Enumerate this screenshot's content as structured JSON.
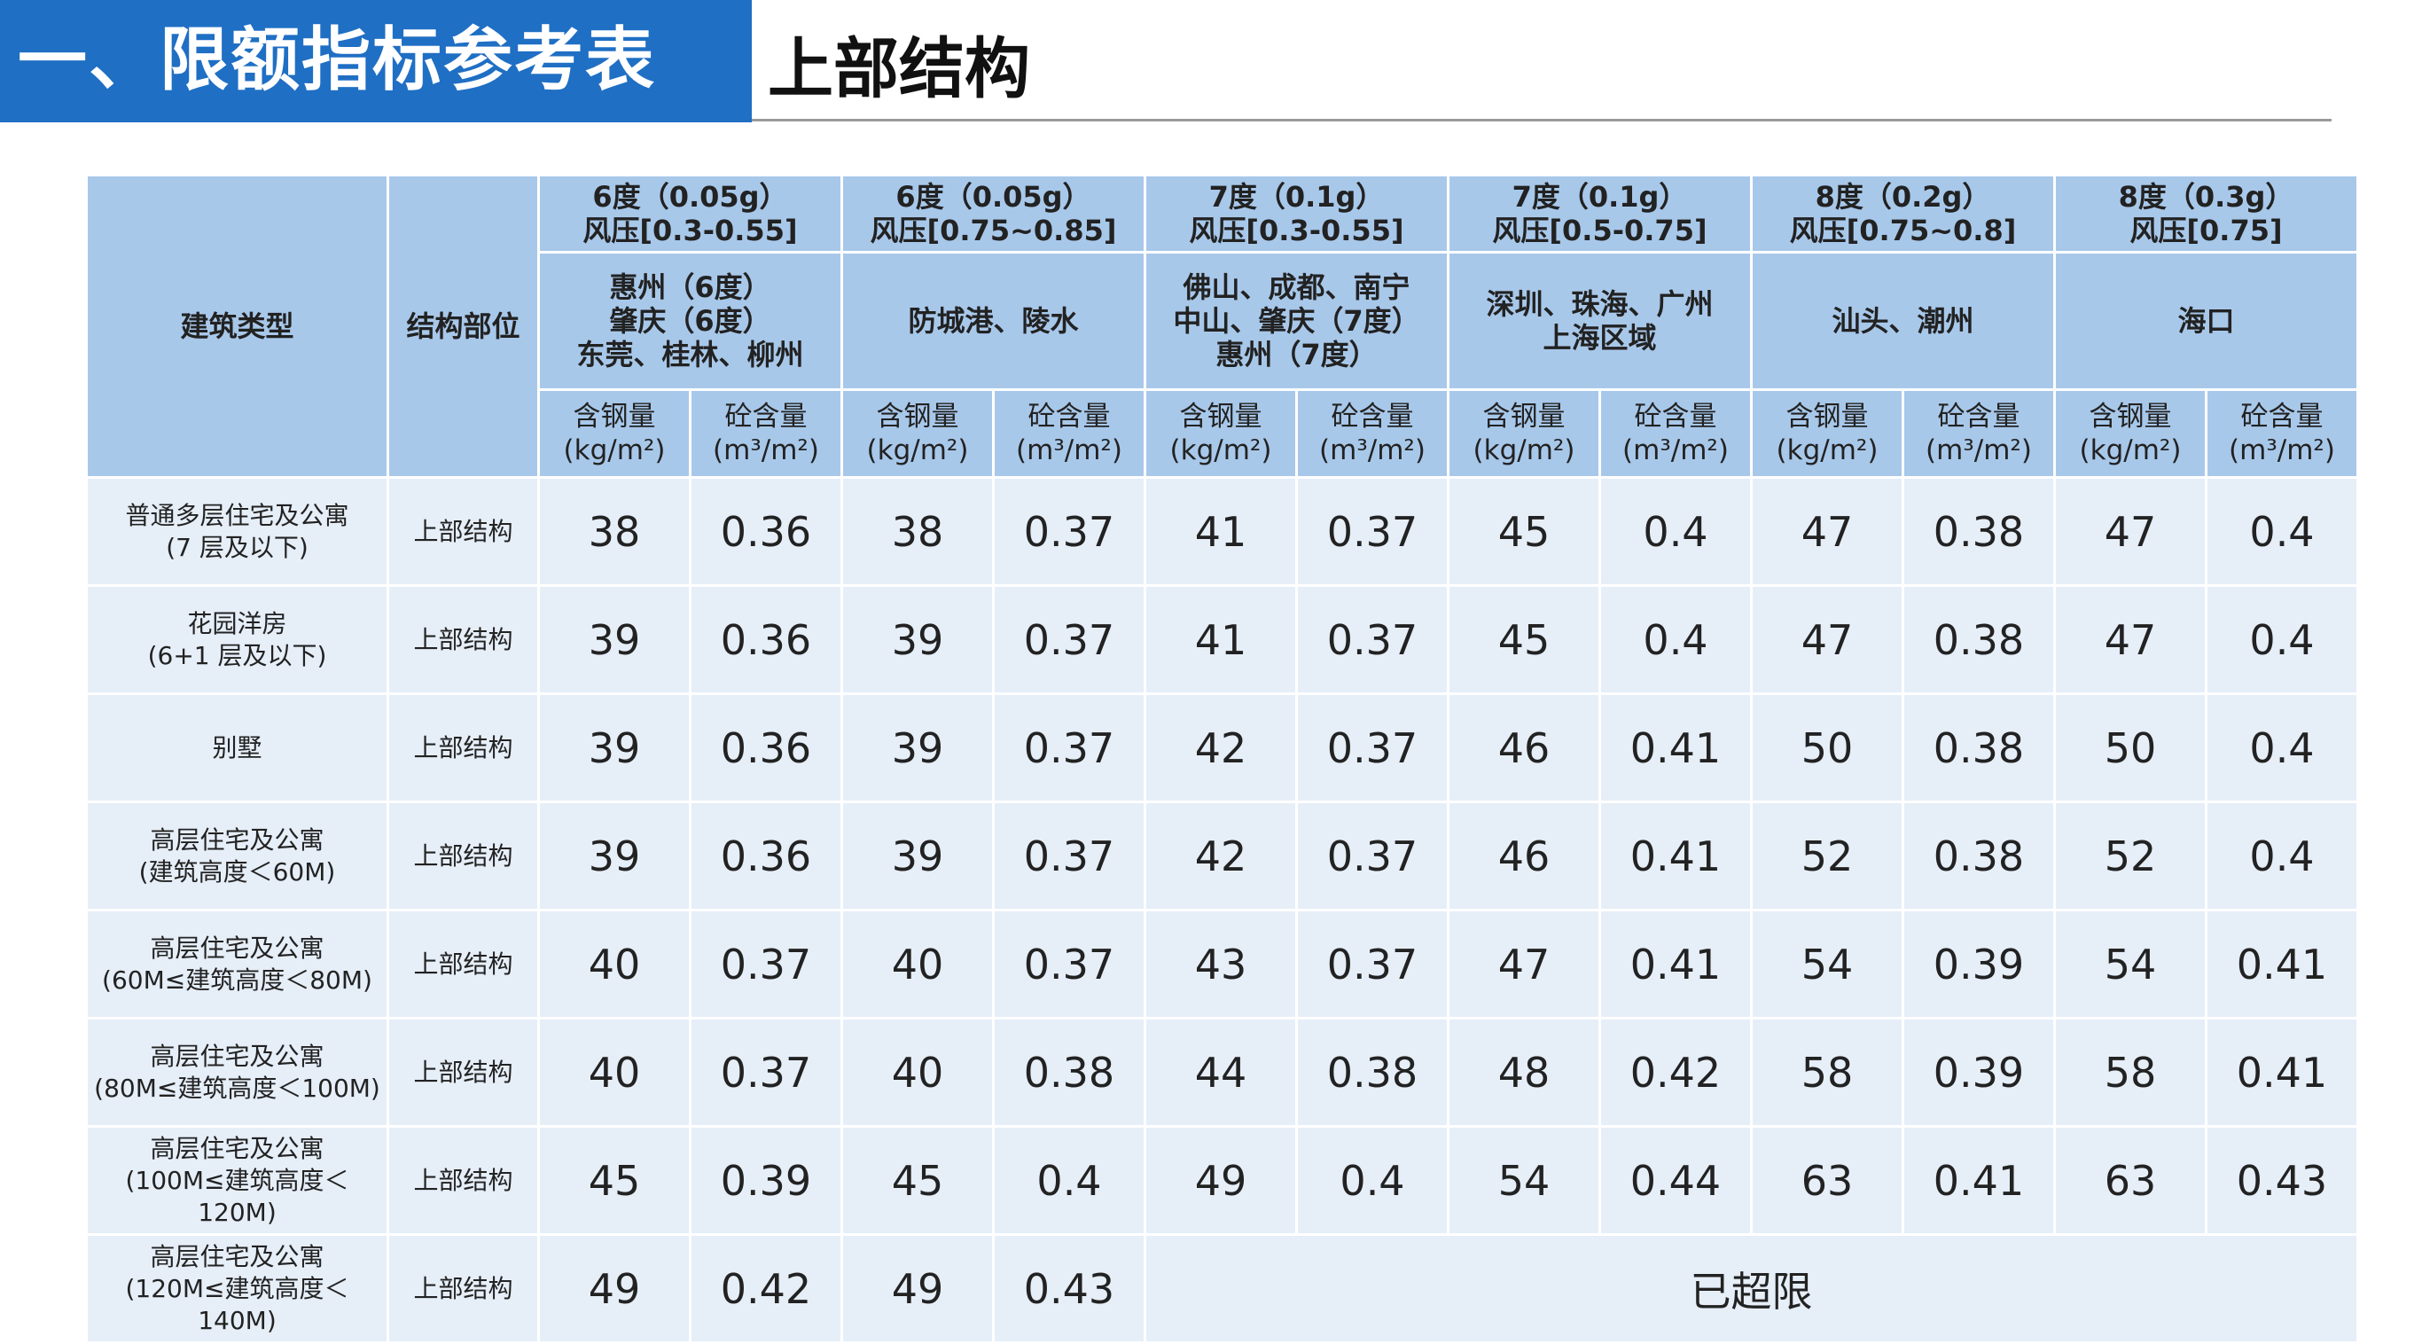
{
  "header": {
    "title": "一、限额指标参考表",
    "subtitle": "上部结构"
  },
  "table": {
    "col_building_type": "建筑类型",
    "col_structure_part": "结构部位",
    "regions": [
      {
        "intensity": "6度（0.05g）",
        "wind": "风压[0.3-0.55]",
        "cities": "惠州（6度）\n肇庆（6度）\n东莞、桂林、柳州"
      },
      {
        "intensity": "6度（0.05g）",
        "wind": "风压[0.75~0.85]",
        "cities": "防城港、陵水"
      },
      {
        "intensity": "7度（0.1g）",
        "wind": "风压[0.3-0.55]",
        "cities": "佛山、成都、南宁\n中山、肇庆（7度）\n惠州（7度）"
      },
      {
        "intensity": "7度（0.1g）",
        "wind": "风压[0.5-0.75]",
        "cities": "深圳、珠海、广州\n上海区域"
      },
      {
        "intensity": "8度（0.2g）",
        "wind": "风压[0.75~0.8]",
        "cities": "汕头、潮州"
      },
      {
        "intensity": "8度（0.3g）",
        "wind": "风压[0.75]",
        "cities": "海口"
      }
    ],
    "steel_label": "含钢量",
    "steel_unit": "(kg/m²)",
    "concrete_label": "砼含量",
    "concrete_unit": "(m³/m²)",
    "rows": [
      {
        "type": "普通多层住宅及公寓\n(7 层及以下)",
        "part": "上部结构",
        "values": [
          "38",
          "0.36",
          "38",
          "0.37",
          "41",
          "0.37",
          "45",
          "0.4",
          "47",
          "0.38",
          "47",
          "0.4"
        ]
      },
      {
        "type": "花园洋房\n(6+1 层及以下)",
        "part": "上部结构",
        "values": [
          "39",
          "0.36",
          "39",
          "0.37",
          "41",
          "0.37",
          "45",
          "0.4",
          "47",
          "0.38",
          "47",
          "0.4"
        ]
      },
      {
        "type": "别墅",
        "part": "上部结构",
        "values": [
          "39",
          "0.36",
          "39",
          "0.37",
          "42",
          "0.37",
          "46",
          "0.41",
          "50",
          "0.38",
          "50",
          "0.4"
        ]
      },
      {
        "type": "高层住宅及公寓\n(建筑高度＜60M)",
        "part": "上部结构",
        "values": [
          "39",
          "0.36",
          "39",
          "0.37",
          "42",
          "0.37",
          "46",
          "0.41",
          "52",
          "0.38",
          "52",
          "0.4"
        ]
      },
      {
        "type": "高层住宅及公寓\n(60M≤建筑高度＜80M)",
        "part": "上部结构",
        "values": [
          "40",
          "0.37",
          "40",
          "0.37",
          "43",
          "0.37",
          "47",
          "0.41",
          "54",
          "0.39",
          "54",
          "0.41"
        ]
      },
      {
        "type": "高层住宅及公寓\n(80M≤建筑高度＜100M)",
        "part": "上部结构",
        "values": [
          "40",
          "0.37",
          "40",
          "0.38",
          "44",
          "0.38",
          "48",
          "0.42",
          "58",
          "0.39",
          "58",
          "0.41"
        ]
      },
      {
        "type": "高层住宅及公寓\n(100M≤建筑高度＜120M)",
        "part": "上部结构",
        "values": [
          "45",
          "0.39",
          "45",
          "0.4",
          "49",
          "0.4",
          "54",
          "0.44",
          "63",
          "0.41",
          "63",
          "0.43"
        ]
      },
      {
        "type": "高层住宅及公寓\n(120M≤建筑高度＜140M)",
        "part": "上部结构",
        "values": [
          "49",
          "0.42",
          "49",
          "0.43"
        ],
        "exceeded_text": "已超限"
      }
    ]
  }
}
